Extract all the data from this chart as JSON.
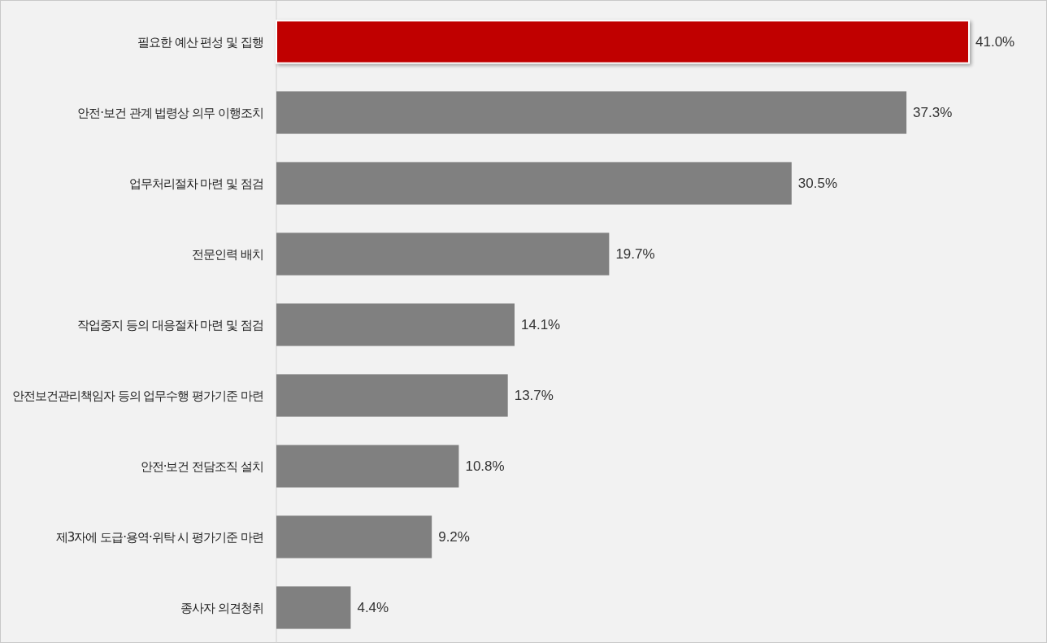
{
  "chart_data": {
    "type": "bar",
    "orientation": "horizontal",
    "categories": [
      "필요한 예산 편성 및 집행",
      "안전·보건 관계 법령상 의무 이행조치",
      "업무처리절차 마련 및 점검",
      "전문인력 배치",
      "작업중지 등의 대응절차 마련 및 점검",
      "안전보건관리책임자 등의 업무수행 평가기준 마련",
      "안전·보건 전담조직 설치",
      "제3자에 도급·용역·위탁 시 평가기준 마련",
      "종사자 의견청취"
    ],
    "values": [
      41.0,
      37.3,
      30.5,
      19.7,
      14.1,
      13.7,
      10.8,
      9.2,
      4.4
    ],
    "value_labels": [
      "41.0%",
      "37.3%",
      "30.5%",
      "19.7%",
      "14.1%",
      "13.7%",
      "10.8%",
      "9.2%",
      "4.4%"
    ],
    "colors": [
      "#c00000",
      "#808080",
      "#808080",
      "#808080",
      "#808080",
      "#808080",
      "#808080",
      "#808080",
      "#808080"
    ]
  }
}
